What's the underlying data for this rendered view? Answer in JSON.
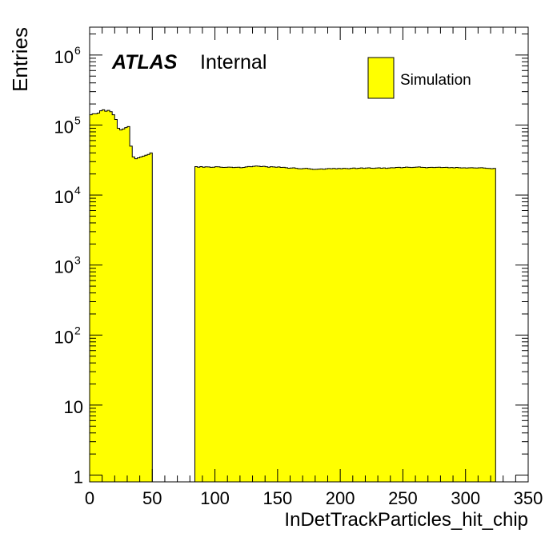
{
  "chart_data": {
    "type": "bar",
    "style": "histogram-step-filled",
    "xlabel": "InDetTrackParticles_hit_chip",
    "ylabel": "Entries",
    "xlim": [
      0,
      350
    ],
    "ylim": [
      0.8,
      2500000
    ],
    "y_scale": "log",
    "x_ticks": [
      "0",
      "50",
      "100",
      "150",
      "200",
      "250",
      "300",
      "350"
    ],
    "y_ticks": [
      {
        "value": 1,
        "base": "1",
        "exp": ""
      },
      {
        "value": 10,
        "base": "10",
        "exp": ""
      },
      {
        "value": 100,
        "base": "10",
        "exp": "2"
      },
      {
        "value": 1000,
        "base": "10",
        "exp": "3"
      },
      {
        "value": 10000,
        "base": "10",
        "exp": "4"
      },
      {
        "value": 100000,
        "base": "10",
        "exp": "5"
      },
      {
        "value": 1000000,
        "base": "10",
        "exp": "6"
      }
    ],
    "fill_color": "#ffff00",
    "line_color": "#000000",
    "bin_width": 2,
    "series": [
      {
        "name": "Simulation",
        "x_start": [
          0,
          2,
          4,
          6,
          8,
          10,
          12,
          14,
          16,
          18,
          20,
          22,
          24,
          26,
          28,
          30,
          32,
          34,
          36,
          38,
          40,
          42,
          44,
          46,
          48
        ],
        "values": [
          140000,
          145000,
          145000,
          148000,
          160000,
          165000,
          158000,
          162000,
          155000,
          140000,
          120000,
          90000,
          85000,
          88000,
          92000,
          95000,
          50000,
          35000,
          33000,
          34000,
          35000,
          36000,
          37000,
          38000,
          40000
        ]
      },
      {
        "name": "",
        "x_start": [
          84,
          86,
          88,
          90,
          92,
          94,
          96,
          98,
          100,
          102,
          104,
          106,
          108,
          110,
          112,
          114,
          116,
          118,
          120,
          122,
          124,
          126,
          128,
          130,
          132,
          134,
          136,
          138,
          140,
          142,
          144,
          146,
          148,
          150,
          152,
          154,
          156,
          158,
          160,
          162,
          164,
          166,
          168,
          170,
          172,
          174,
          176,
          178,
          180,
          182,
          184,
          186,
          188,
          190,
          192,
          194,
          196,
          198,
          200,
          202,
          204,
          206,
          208,
          210,
          212,
          214,
          216,
          218,
          220,
          222,
          224,
          226,
          228,
          230,
          232,
          234,
          236,
          238,
          240,
          242,
          244,
          246,
          248,
          250,
          252,
          254,
          256,
          258,
          260,
          262,
          264,
          266,
          268,
          270,
          272,
          274,
          276,
          278,
          280,
          282,
          284,
          286,
          288,
          290,
          292,
          294,
          296,
          298,
          300,
          302,
          304,
          306,
          308,
          310,
          312,
          314,
          316,
          318,
          320,
          322
        ],
        "values": [
          25500,
          25000,
          25500,
          25000,
          25300,
          25200,
          24900,
          25000,
          25400,
          25300,
          25000,
          24800,
          24900,
          25100,
          25000,
          24700,
          24900,
          25000,
          24600,
          24800,
          25200,
          25600,
          25400,
          25700,
          26000,
          25800,
          25500,
          25700,
          25400,
          25000,
          25400,
          25200,
          25000,
          25200,
          24800,
          24900,
          24600,
          24200,
          24300,
          24500,
          24100,
          23800,
          23700,
          23900,
          24100,
          23800,
          23500,
          23200,
          23300,
          23500,
          23600,
          23400,
          23700,
          23900,
          23800,
          24000,
          23700,
          24000,
          23800,
          24100,
          23900,
          23800,
          24100,
          24300,
          23900,
          24200,
          24400,
          24100,
          24300,
          24500,
          24200,
          24100,
          24300,
          24500,
          24200,
          24400,
          24100,
          24300,
          24600,
          24500,
          24800,
          24900,
          24600,
          24800,
          25100,
          24900,
          24700,
          24900,
          25100,
          25200,
          24900,
          24800,
          24600,
          24800,
          24900,
          24700,
          24900,
          25000,
          24700,
          24800,
          24900,
          24600,
          24700,
          24500,
          24800,
          24600,
          24400,
          24500,
          24300,
          24500,
          24600,
          24400,
          24300,
          24500,
          24600,
          24300,
          24100,
          24000,
          23800,
          24000
        ]
      }
    ],
    "legend": {
      "entries": [
        "Simulation"
      ],
      "position": "top-right"
    },
    "atlas_label": "ATLAS",
    "atlas_status": "Internal"
  }
}
